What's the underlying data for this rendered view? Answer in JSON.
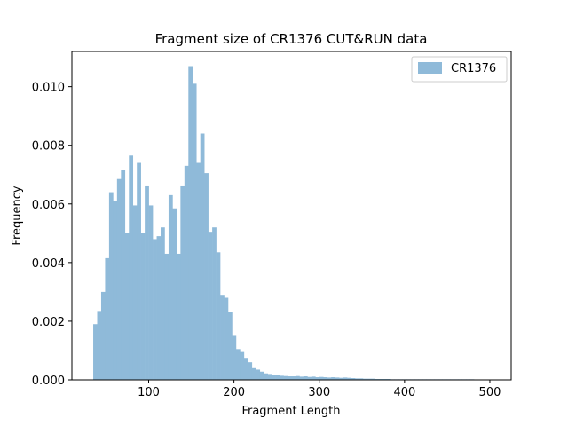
{
  "chart_data": {
    "type": "bar",
    "title": "Fragment size of CR1376 CUT&RUN data",
    "xlabel": "Fragment Length",
    "ylabel": "Frequency",
    "xlim": [
      10,
      525
    ],
    "ylim": [
      0,
      0.0112
    ],
    "xticks": [
      100,
      200,
      300,
      400,
      500
    ],
    "yticks": [
      0.0,
      0.002,
      0.004,
      0.006,
      0.008,
      0.01
    ],
    "ytick_labels": [
      "0.000",
      "0.002",
      "0.004",
      "0.006",
      "0.008",
      "0.010"
    ],
    "legend": {
      "position": "top-right",
      "label": "CR1376"
    },
    "color": "#8fbad9",
    "series": [
      {
        "name": "CR1376",
        "bin_start": 35,
        "bin_width": 4.65,
        "values": [
          0.0019,
          0.00235,
          0.003,
          0.00415,
          0.0064,
          0.0061,
          0.00685,
          0.00715,
          0.005,
          0.00765,
          0.00595,
          0.0074,
          0.005,
          0.0066,
          0.00595,
          0.0048,
          0.0049,
          0.0052,
          0.0043,
          0.0063,
          0.00585,
          0.0043,
          0.0066,
          0.0073,
          0.0107,
          0.0101,
          0.0074,
          0.0084,
          0.00705,
          0.00505,
          0.0052,
          0.00435,
          0.0029,
          0.0028,
          0.0023,
          0.0015,
          0.00105,
          0.00095,
          0.00075,
          0.0006,
          0.0004,
          0.00035,
          0.00028,
          0.00022,
          0.0002,
          0.00017,
          0.00016,
          0.00014,
          0.00013,
          0.00012,
          0.00012,
          0.00013,
          0.00011,
          0.00012,
          0.0001,
          0.00011,
          9e-05,
          0.0001,
          9e-05,
          8e-05,
          9e-05,
          8e-05,
          7e-05,
          8e-05,
          7e-05,
          6e-05,
          5e-05,
          5e-05,
          4e-05,
          4e-05,
          4e-05,
          3e-05,
          3e-05,
          3e-05,
          3e-05,
          2e-05,
          2e-05,
          2e-05,
          2e-05,
          2e-05,
          2e-05,
          2e-05,
          2e-05,
          2e-05,
          2e-05,
          2e-05,
          2e-05,
          2e-05,
          2e-05,
          2e-05,
          2e-05,
          2e-05,
          2e-05,
          2e-05,
          2e-05,
          2e-05,
          1e-05,
          1e-05,
          1e-05,
          1e-05
        ]
      }
    ]
  }
}
